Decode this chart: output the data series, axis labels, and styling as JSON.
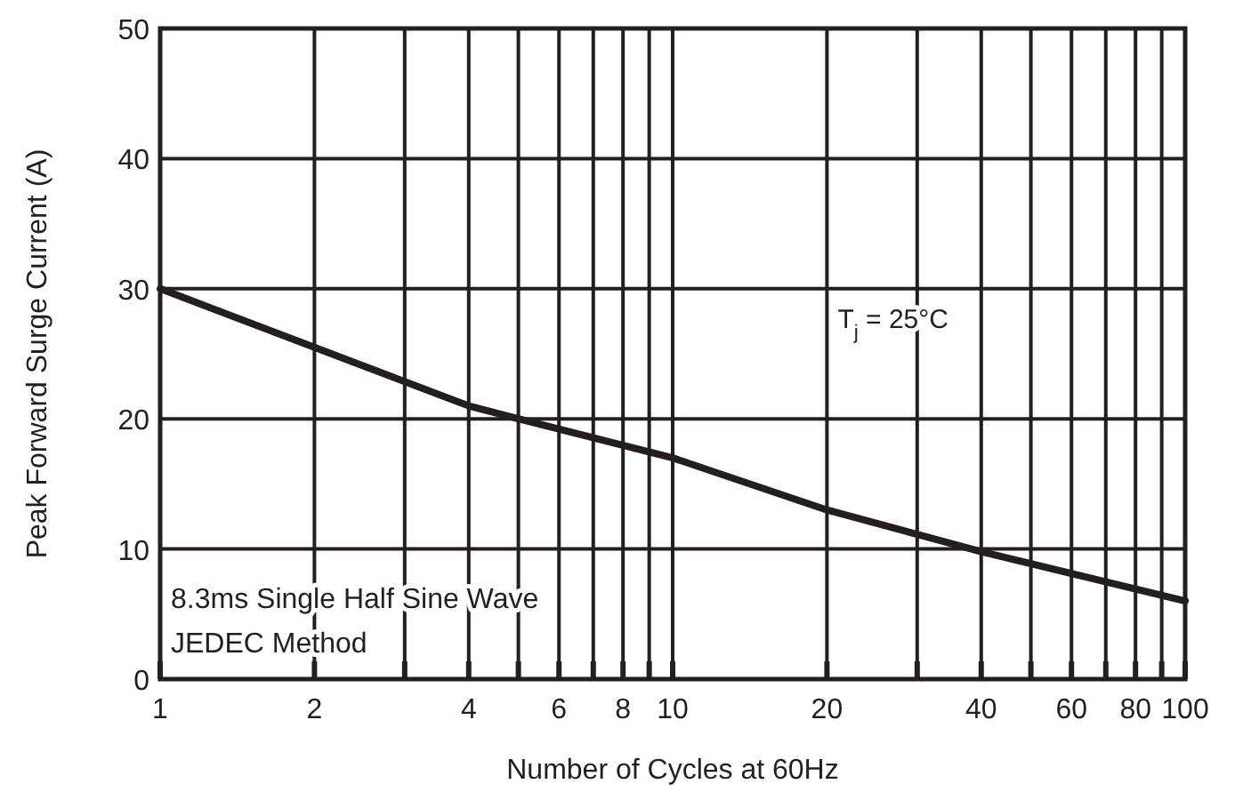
{
  "chart_data": {
    "type": "line",
    "xlabel": "Number of Cycles at 60Hz",
    "ylabel": "Peak Forward Surge Current (A)",
    "log": "x",
    "grid": true,
    "marker": "none",
    "line_style": "solid",
    "xlim": [
      1,
      100
    ],
    "ylim": [
      0,
      50
    ],
    "xticks": [
      1,
      2,
      {
        "value": 3,
        "label": null
      },
      4,
      {
        "value": 5,
        "label": null
      },
      6,
      {
        "value": 7,
        "label": null
      },
      8,
      {
        "value": 9,
        "label": null
      },
      10,
      20,
      {
        "value": 30,
        "label": null
      },
      40,
      {
        "value": 50,
        "label": null
      },
      60,
      {
        "value": 70,
        "label": null
      },
      80,
      {
        "value": 90,
        "label": null
      },
      100
    ],
    "yticks": [
      0,
      10,
      20,
      30,
      40,
      50
    ],
    "series": [
      {
        "color": "#231f20",
        "x": [
          1,
          2,
          4,
          5,
          10,
          20,
          40,
          100
        ],
        "values": [
          30,
          25.5,
          21,
          20,
          17,
          13,
          9.8,
          6
        ]
      }
    ],
    "annotations": [
      "T$_{j}$ = 25°C",
      "8.3ms Single Half Sine Wave",
      "JEDEC Method"
    ]
  }
}
